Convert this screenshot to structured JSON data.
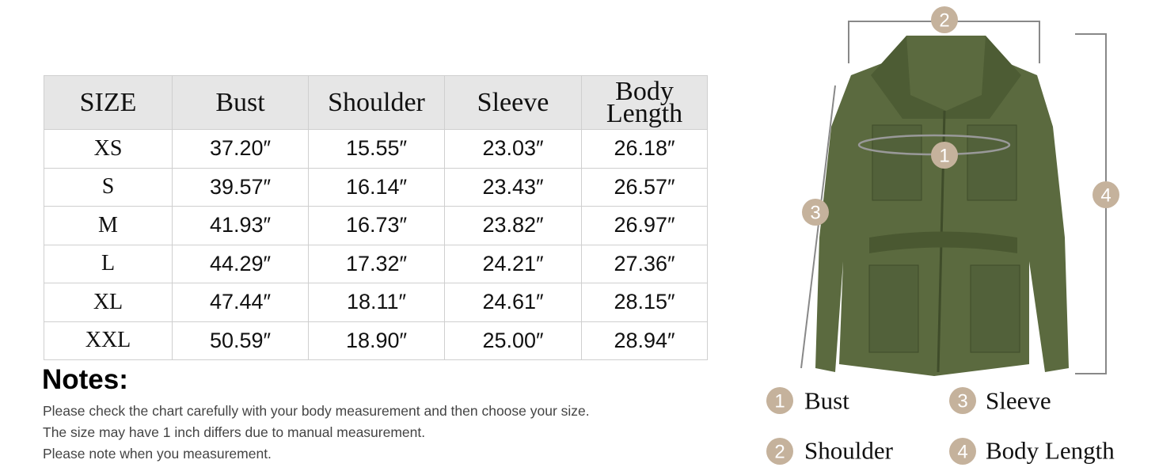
{
  "table": {
    "header": [
      "SIZE",
      "Bust",
      "Shoulder",
      "Sleeve",
      "Body Length"
    ],
    "rows": [
      [
        "XS",
        "37.20″",
        "15.55″",
        "23.03″",
        "26.18″"
      ],
      [
        "S",
        "39.57″",
        "16.14″",
        "23.43″",
        "26.57″"
      ],
      [
        "M",
        "41.93″",
        "16.73″",
        "23.82″",
        "26.97″"
      ],
      [
        "L",
        "44.29″",
        "17.32″",
        "24.21″",
        "27.36″"
      ],
      [
        "XL",
        "47.44″",
        "18.11″",
        "24.61″",
        "28.15″"
      ],
      [
        "XXL",
        "50.59″",
        "18.90″",
        "25.00″",
        "28.94″"
      ]
    ]
  },
  "notes": {
    "title": "Notes:",
    "lines": [
      "Please check the chart carefully with your body measurement and then choose your size.",
      "The size may have 1 inch differs due to manual measurement.",
      "Please note when you measurement."
    ]
  },
  "diagram": {
    "markers": [
      "1",
      "2",
      "3",
      "4"
    ]
  },
  "legend": [
    {
      "number": "1",
      "label": "Bust"
    },
    {
      "number": "3",
      "label": "Sleeve"
    },
    {
      "number": "2",
      "label": "Shoulder"
    },
    {
      "number": "4",
      "label": "Body Length"
    }
  ]
}
